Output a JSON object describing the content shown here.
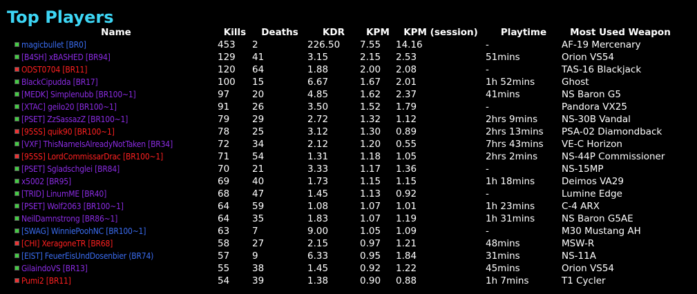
{
  "page": {
    "title": "Top Players"
  },
  "colors": {
    "title": "#3dd6f5",
    "faction": {
      "VS": "#8a2be2",
      "TR": "#ff2020",
      "NC": "#3a6cf0"
    },
    "icon": {
      "VS": "#44cc44",
      "TR": "#ee3333",
      "NC": "#44cc44"
    }
  },
  "columns": {
    "name": "Name",
    "kills": "Kills",
    "deaths": "Deaths",
    "kdr": "KDR",
    "kpm": "KPM",
    "kpm_session": "KPM (session)",
    "playtime": "Playtime",
    "weapon": "Most Used Weapon"
  },
  "players": [
    {
      "name": "magicbullet [BR0]",
      "faction": "NC",
      "kills": "453",
      "deaths": "2",
      "kdr": "226.50",
      "kpm": "7.55",
      "kpm_session": "14.16",
      "playtime": "-",
      "weapon": "AF-19 Mercenary"
    },
    {
      "name": "[B4SH] xBASHED [BR94]",
      "faction": "VS",
      "kills": "129",
      "deaths": "41",
      "kdr": "3.15",
      "kpm": "2.15",
      "kpm_session": "2.53",
      "playtime": "51mins",
      "weapon": "Orion VS54"
    },
    {
      "name": "ODST0704 [BR11]",
      "faction": "TR",
      "kills": "120",
      "deaths": "64",
      "kdr": "1.88",
      "kpm": "2.00",
      "kpm_session": "2.08",
      "playtime": "-",
      "weapon": "TAS-16 Blackjack"
    },
    {
      "name": "BlackCipudda [BR17]",
      "faction": "VS",
      "kills": "100",
      "deaths": "15",
      "kdr": "6.67",
      "kpm": "1.67",
      "kpm_session": "2.01",
      "playtime": "1h 52mins",
      "weapon": "Ghost"
    },
    {
      "name": "[MEDK] Simplenubb [BR100~1]",
      "faction": "VS",
      "kills": "97",
      "deaths": "20",
      "kdr": "4.85",
      "kpm": "1.62",
      "kpm_session": "2.37",
      "playtime": "41mins",
      "weapon": "NS Baron G5"
    },
    {
      "name": "[XTAC] geilo20 [BR100~1]",
      "faction": "VS",
      "kills": "91",
      "deaths": "26",
      "kdr": "3.50",
      "kpm": "1.52",
      "kpm_session": "1.79",
      "playtime": "-",
      "weapon": "Pandora VX25"
    },
    {
      "name": "[PSET] ZzSassazZ [BR100~1]",
      "faction": "VS",
      "kills": "79",
      "deaths": "29",
      "kdr": "2.72",
      "kpm": "1.32",
      "kpm_session": "1.12",
      "playtime": "2hrs 9mins",
      "weapon": "NS-30B Vandal"
    },
    {
      "name": "[95SS] quik90 [BR100~1]",
      "faction": "TR",
      "kills": "78",
      "deaths": "25",
      "kdr": "3.12",
      "kpm": "1.30",
      "kpm_session": "0.89",
      "playtime": "2hrs 13mins",
      "weapon": "PSA-02 Diamondback"
    },
    {
      "name": "[VXF] ThisNameIsAlreadyNotTaken [BR34]",
      "faction": "VS",
      "kills": "72",
      "deaths": "34",
      "kdr": "2.12",
      "kpm": "1.20",
      "kpm_session": "0.55",
      "playtime": "7hrs 43mins",
      "weapon": "VE-C Horizon"
    },
    {
      "name": "[95SS] LordCommissarDrac [BR100~1]",
      "faction": "TR",
      "kills": "71",
      "deaths": "54",
      "kdr": "1.31",
      "kpm": "1.18",
      "kpm_session": "1.05",
      "playtime": "2hrs 2mins",
      "weapon": "NS-44P Commissioner"
    },
    {
      "name": "[PSET] Sgladschglei [BR84]",
      "faction": "VS",
      "kills": "70",
      "deaths": "21",
      "kdr": "3.33",
      "kpm": "1.17",
      "kpm_session": "1.36",
      "playtime": "-",
      "weapon": "NS-15MP"
    },
    {
      "name": "x5002 [BR95]",
      "faction": "VS",
      "kills": "69",
      "deaths": "40",
      "kdr": "1.73",
      "kpm": "1.15",
      "kpm_session": "1.15",
      "playtime": "1h 18mins",
      "weapon": "Deimos VA29"
    },
    {
      "name": "[TRID] LinumME [BR40]",
      "faction": "VS",
      "kills": "68",
      "deaths": "47",
      "kdr": "1.45",
      "kpm": "1.13",
      "kpm_session": "0.92",
      "playtime": "-",
      "weapon": "Lumine Edge"
    },
    {
      "name": "[PSET] Wolf2063 [BR100~1]",
      "faction": "VS",
      "kills": "64",
      "deaths": "59",
      "kdr": "1.08",
      "kpm": "1.07",
      "kpm_session": "1.01",
      "playtime": "1h 23mins",
      "weapon": "C-4 ARX"
    },
    {
      "name": "NeilDamnstrong [BR86~1]",
      "faction": "VS",
      "kills": "64",
      "deaths": "35",
      "kdr": "1.83",
      "kpm": "1.07",
      "kpm_session": "1.19",
      "playtime": "1h 31mins",
      "weapon": "NS Baron G5AE"
    },
    {
      "name": "[SWAG] WinniePoohNC [BR100~1]",
      "faction": "NC",
      "kills": "63",
      "deaths": "7",
      "kdr": "9.00",
      "kpm": "1.05",
      "kpm_session": "1.09",
      "playtime": "-",
      "weapon": "M30 Mustang AH"
    },
    {
      "name": "[CHI] XeragoneTR [BR68]",
      "faction": "TR",
      "kills": "58",
      "deaths": "27",
      "kdr": "2.15",
      "kpm": "0.97",
      "kpm_session": "1.21",
      "playtime": "48mins",
      "weapon": "MSW-R"
    },
    {
      "name": "[EIST] FeuerEisUndDosenbier (BR74)",
      "faction": "NC",
      "kills": "57",
      "deaths": "9",
      "kdr": "6.33",
      "kpm": "0.95",
      "kpm_session": "1.84",
      "playtime": "31mins",
      "weapon": "NS-11A"
    },
    {
      "name": "GilaindoVS [BR13]",
      "faction": "VS",
      "kills": "55",
      "deaths": "38",
      "kdr": "1.45",
      "kpm": "0.92",
      "kpm_session": "1.22",
      "playtime": "45mins",
      "weapon": "Orion VS54"
    },
    {
      "name": "Pumi2 [BR11]",
      "faction": "TR",
      "kills": "54",
      "deaths": "39",
      "kdr": "1.38",
      "kpm": "0.90",
      "kpm_session": "0.88",
      "playtime": "1h 7mins",
      "weapon": "T1 Cycler"
    }
  ]
}
